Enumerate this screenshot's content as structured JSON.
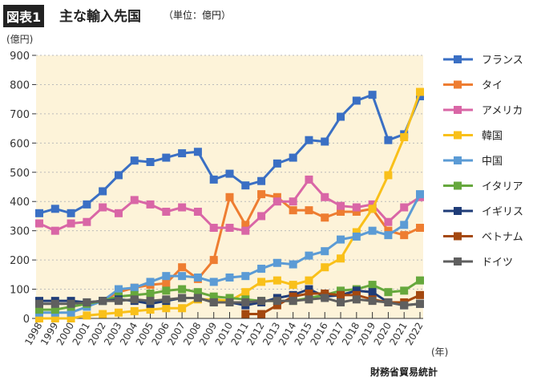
{
  "title": {
    "badge": "図表1",
    "main": "主な輸入先国",
    "unit": "（単位：億円）"
  },
  "source": "財務省貿易統計",
  "chart_data": {
    "type": "line",
    "ylabel": "(億円)",
    "xlabel": "(年)",
    "ylim": [
      0,
      900
    ],
    "yticks": [
      0,
      100,
      200,
      300,
      400,
      500,
      600,
      700,
      800,
      900
    ],
    "grid": true,
    "legend": "right",
    "categories": [
      "1998",
      "1999",
      "2000",
      "2001",
      "2002",
      "2003",
      "2004",
      "2005",
      "2006",
      "2007",
      "2008",
      "2009",
      "2010",
      "2011",
      "2012",
      "2013",
      "2014",
      "2015",
      "2016",
      "2017",
      "2018",
      "2019",
      "2020",
      "2021",
      "2022"
    ],
    "series": [
      {
        "name": "フランス",
        "color": "#3a6fc4",
        "values": [
          360,
          375,
          360,
          390,
          435,
          490,
          540,
          535,
          550,
          565,
          570,
          475,
          495,
          455,
          470,
          530,
          550,
          610,
          605,
          690,
          745,
          765,
          610,
          630,
          760
        ]
      },
      {
        "name": "タイ",
        "color": "#ee7d31",
        "values": [
          null,
          null,
          null,
          null,
          60,
          90,
          105,
          115,
          120,
          175,
          135,
          200,
          415,
          320,
          425,
          415,
          370,
          370,
          345,
          365,
          365,
          375,
          300,
          285,
          310
        ]
      },
      {
        "name": "アメリカ",
        "color": "#d966a6",
        "values": [
          325,
          300,
          325,
          330,
          380,
          360,
          405,
          390,
          365,
          380,
          365,
          310,
          310,
          300,
          350,
          400,
          400,
          475,
          415,
          385,
          380,
          390,
          330,
          380,
          415
        ]
      },
      {
        "name": "韓国",
        "color": "#f9c01a",
        "values": [
          0,
          0,
          0,
          10,
          15,
          20,
          25,
          30,
          35,
          35,
          65,
          65,
          60,
          90,
          125,
          130,
          115,
          130,
          175,
          205,
          295,
          375,
          490,
          620,
          775
        ]
      },
      {
        "name": "中国",
        "color": "#5b9bd5",
        "values": [
          20,
          20,
          20,
          40,
          60,
          100,
          105,
          125,
          145,
          145,
          140,
          125,
          140,
          145,
          170,
          190,
          185,
          215,
          230,
          270,
          280,
          300,
          285,
          320,
          425
        ]
      },
      {
        "name": "イタリア",
        "color": "#66a83d",
        "values": [
          30,
          30,
          40,
          50,
          60,
          75,
          80,
          85,
          95,
          100,
          90,
          75,
          70,
          65,
          60,
          60,
          60,
          70,
          80,
          95,
          100,
          115,
          90,
          95,
          130
        ]
      },
      {
        "name": "イギリス",
        "color": "#1f3c78",
        "values": [
          60,
          60,
          60,
          55,
          60,
          65,
          60,
          50,
          60,
          70,
          70,
          55,
          55,
          45,
          55,
          70,
          80,
          100,
          75,
          80,
          95,
          90,
          55,
          45,
          50
        ]
      },
      {
        "name": "ベトナム",
        "color": "#a4480f",
        "values": [
          null,
          null,
          null,
          null,
          null,
          null,
          null,
          null,
          null,
          null,
          null,
          null,
          null,
          15,
          15,
          45,
          75,
          85,
          85,
          80,
          80,
          65,
          55,
          55,
          80
        ]
      },
      {
        "name": "ドイツ",
        "color": "#5f5f5f",
        "values": [
          50,
          50,
          50,
          55,
          60,
          60,
          65,
          60,
          65,
          70,
          70,
          55,
          55,
          55,
          60,
          60,
          60,
          65,
          70,
          55,
          65,
          60,
          55,
          45,
          50
        ]
      }
    ]
  }
}
